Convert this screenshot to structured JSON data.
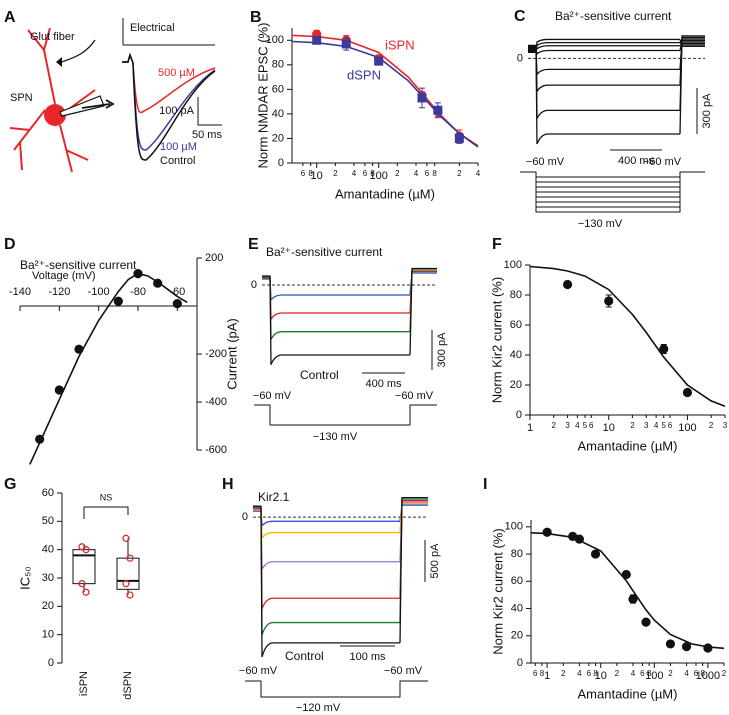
{
  "chart_data": [
    {
      "panel": "A",
      "type": "schematic",
      "labels": {
        "fiber": "Glut fiber",
        "stim": "Electrical",
        "cell": "SPN",
        "high": "500 µM",
        "low": "100 µM",
        "control": "Control",
        "amp": "100 pA",
        "time": "50 ms"
      }
    },
    {
      "panel": "B",
      "type": "scatter",
      "log_x": true,
      "xlabel": "Amantadine (µM)",
      "ylabel": "Norm NMDAR EPSC (%)",
      "xlim": [
        4,
        4000
      ],
      "ylim": [
        0,
        110
      ],
      "xticks": [
        6,
        8,
        10,
        {
          "value": 20,
          "label": "2"
        },
        {
          "value": 40,
          "label": "4"
        },
        {
          "value": 60,
          "label": "6"
        },
        {
          "value": 80,
          "label": "8"
        },
        100,
        {
          "value": 200,
          "label": "2"
        },
        {
          "value": 400,
          "label": "4"
        },
        {
          "value": 600,
          "label": "6"
        },
        {
          "value": 800,
          "label": "8"
        },
        {
          "value": 2000,
          "label": "2"
        },
        {
          "value": 4000,
          "label": "4"
        }
      ],
      "yticks": [
        0,
        20,
        40,
        60,
        80,
        100
      ],
      "series": [
        {
          "name": "iSPN",
          "color": "#e8262a",
          "marker": "circle",
          "x": [
            10,
            30,
            100,
            500,
            900,
            2000
          ],
          "values": [
            105,
            100,
            85,
            55,
            42,
            22
          ],
          "errors": [
            3,
            4,
            3,
            3,
            4,
            5
          ],
          "fit_x": [
            4,
            10,
            30,
            100,
            300,
            1000,
            2000,
            4000
          ],
          "fit_values": [
            104,
            103,
            100,
            90,
            70,
            39,
            24,
            14
          ]
        },
        {
          "name": "dSPN",
          "color": "#3a3a9c",
          "marker": "square",
          "x": [
            10,
            30,
            100,
            500,
            900,
            2000
          ],
          "values": [
            100,
            97,
            83,
            53,
            43,
            20
          ],
          "errors": [
            3,
            5,
            3,
            8,
            6,
            4
          ],
          "fit_x": [
            4,
            10,
            30,
            100,
            300,
            1000,
            2000,
            4000
          ],
          "fit_values": [
            99,
            98,
            95,
            86,
            67,
            38,
            24,
            13
          ]
        }
      ]
    },
    {
      "panel": "C",
      "type": "traces",
      "title": "Ba²⁺-sensitive current",
      "ylim": [
        -550,
        180
      ],
      "yticks": [
        0
      ],
      "traces": [
        {
          "color": "#111111",
          "level": 120
        },
        {
          "color": "#111111",
          "level": 100
        },
        {
          "color": "#111111",
          "level": 80
        },
        {
          "color": "#111111",
          "level": 50
        },
        {
          "color": "#111111",
          "level": -70
        },
        {
          "color": "#111111",
          "level": -170
        },
        {
          "color": "#111111",
          "level": -330
        },
        {
          "color": "#111111",
          "level": -480
        }
      ],
      "scalebar": {
        "y": "300 pA",
        "x": "400 ms"
      },
      "protocol": {
        "hold": "−60 mV",
        "end": "−60 mV",
        "step": "−130 mV"
      }
    },
    {
      "panel": "D",
      "type": "scatter",
      "title": "Ba²⁺-sensitive current",
      "xlabel": "Voltage (mV)",
      "ylabel": "Current (pA)",
      "xlim": [
        -140,
        -50
      ],
      "ylim": [
        -600,
        200
      ],
      "xticks": [
        -140,
        -120,
        -100,
        -80,
        -60
      ],
      "yticks": [
        -600,
        -400,
        -200,
        200
      ],
      "series": [
        {
          "color": "#111111",
          "x": [
            -130,
            -120,
            -110,
            -90,
            -80,
            -70,
            -60
          ],
          "values": [
            -555,
            -350,
            -180,
            20,
            135,
            95,
            10
          ],
          "fit_x": [
            -135,
            -130,
            -120,
            -110,
            -100,
            -90,
            -85,
            -80,
            -75,
            -70,
            -65,
            -60,
            -55
          ],
          "fit_values": [
            -660,
            -570,
            -390,
            -210,
            -60,
            60,
            110,
            135,
            125,
            100,
            70,
            40,
            15
          ]
        }
      ]
    },
    {
      "panel": "E",
      "type": "traces",
      "title": "Ba²⁺-sensitive current",
      "ylim": [
        -600,
        150
      ],
      "yticks": [
        0
      ],
      "traces": [
        {
          "color": "#2a4fb0",
          "level": -75
        },
        {
          "color": "#e02020",
          "level": -210
        },
        {
          "color": "#1e7a2e",
          "level": -350
        },
        {
          "color": "#111111",
          "level": -525
        }
      ],
      "control": "Control",
      "scalebar": {
        "y": "300 pA",
        "x": "400 ms"
      },
      "protocol": {
        "hold": "−60 mV",
        "end": "−60 mV",
        "step": "−130 mV"
      }
    },
    {
      "panel": "F",
      "type": "scatter",
      "log_x": true,
      "xlabel": "Amantadine (µM)",
      "ylabel": "Norm Kir2 current (%)",
      "xlim": [
        1,
        300
      ],
      "ylim": [
        0,
        100
      ],
      "xticks": [
        1,
        2,
        3,
        4,
        5,
        6,
        10,
        {
          "value": 20,
          "label": "2"
        },
        {
          "value": 30,
          "label": "3"
        },
        {
          "value": 40,
          "label": "4"
        },
        {
          "value": 50,
          "label": "5"
        },
        {
          "value": 60,
          "label": "6"
        },
        100,
        {
          "value": 200,
          "label": "2"
        },
        {
          "value": 300,
          "label": "3"
        }
      ],
      "yticks": [
        0,
        20,
        40,
        60,
        80,
        100
      ],
      "series": [
        {
          "color": "#111111",
          "x": [
            3,
            10,
            50,
            100
          ],
          "values": [
            87,
            76,
            44,
            15
          ],
          "errors": [
            2,
            4,
            3,
            2
          ],
          "fit_x": [
            1,
            2,
            3,
            5,
            10,
            20,
            30,
            50,
            100,
            200,
            300
          ],
          "fit_values": [
            99,
            97.6,
            96,
            92.6,
            83.6,
            67,
            55,
            38.6,
            20,
            9.4,
            5.8
          ]
        }
      ]
    },
    {
      "panel": "G",
      "type": "box",
      "ylabel": "IC₅₀",
      "annotation": "NS",
      "ylim": [
        0,
        60
      ],
      "yticks": [
        0,
        10,
        20,
        30,
        40,
        50,
        60
      ],
      "categories": [
        "iSPN",
        "dSPN"
      ],
      "color": "#d0342c",
      "boxes": [
        {
          "min": 25,
          "q1": 28,
          "median": 38,
          "q3": 40,
          "max": 42,
          "points": [
            41,
            40,
            28,
            25
          ]
        },
        {
          "min": 24,
          "q1": 26,
          "median": 29,
          "q3": 37,
          "max": 44,
          "points": [
            44,
            37,
            28,
            24
          ]
        }
      ]
    },
    {
      "panel": "H",
      "type": "traces",
      "title": "Kir2.1",
      "ylim": [
        -1700,
        150
      ],
      "yticks": [
        0
      ],
      "traces": [
        {
          "color": "#2b3bd0",
          "level": -50
        },
        {
          "color": "#f0b800",
          "level": -190
        },
        {
          "color": "#9a6cc8",
          "level": -550
        },
        {
          "color": "#e02020",
          "level": -1000
        },
        {
          "color": "#1e7a2e",
          "level": -1300
        },
        {
          "color": "#111111",
          "level": -1550
        }
      ],
      "control": "Control",
      "scalebar": {
        "y": "500 pA",
        "x": "100 ms"
      },
      "protocol": {
        "hold": "−60 mV",
        "end": "−60 mV",
        "step": "−120 mV"
      }
    },
    {
      "panel": "I",
      "type": "scatter",
      "log_x": true,
      "xlabel": "Amantadine (µM)",
      "ylabel": "Norm Kir2 current (%)",
      "xlim": [
        0.5,
        2000
      ],
      "ylim": [
        0,
        105
      ],
      "xticks": [
        {
          "value": 0.6,
          "label": "6"
        },
        {
          "value": 0.8,
          "label": "8"
        },
        1,
        2,
        4,
        6,
        8,
        10,
        {
          "value": 20,
          "label": "2"
        },
        {
          "value": 40,
          "label": "4"
        },
        {
          "value": 60,
          "label": "6"
        },
        {
          "value": 80,
          "label": "8"
        },
        100,
        {
          "value": 200,
          "label": "2"
        },
        {
          "value": 400,
          "label": "4"
        },
        {
          "value": 600,
          "label": "6"
        },
        {
          "value": 800,
          "label": "8"
        },
        1000,
        {
          "value": 2000,
          "label": "2"
        }
      ],
      "yticks": [
        0,
        20,
        40,
        60,
        80,
        100
      ],
      "series": [
        {
          "color": "#111111",
          "x": [
            1,
            3,
            4,
            8,
            30,
            40,
            70,
            200,
            400,
            1000
          ],
          "values": [
            96,
            93,
            91,
            80,
            65,
            47,
            30,
            14,
            12,
            11
          ],
          "errors": [
            1,
            1,
            1,
            2,
            2,
            3,
            2,
            1,
            1,
            1
          ],
          "fit_x": [
            0.5,
            1,
            3,
            10,
            30,
            40,
            70,
            100,
            200,
            500,
            1000,
            2000
          ],
          "fit_values": [
            95.6,
            95,
            92.3,
            82.3,
            60.4,
            53,
            39,
            31.5,
            20.9,
            14,
            11.8,
            10.8
          ]
        }
      ]
    }
  ]
}
